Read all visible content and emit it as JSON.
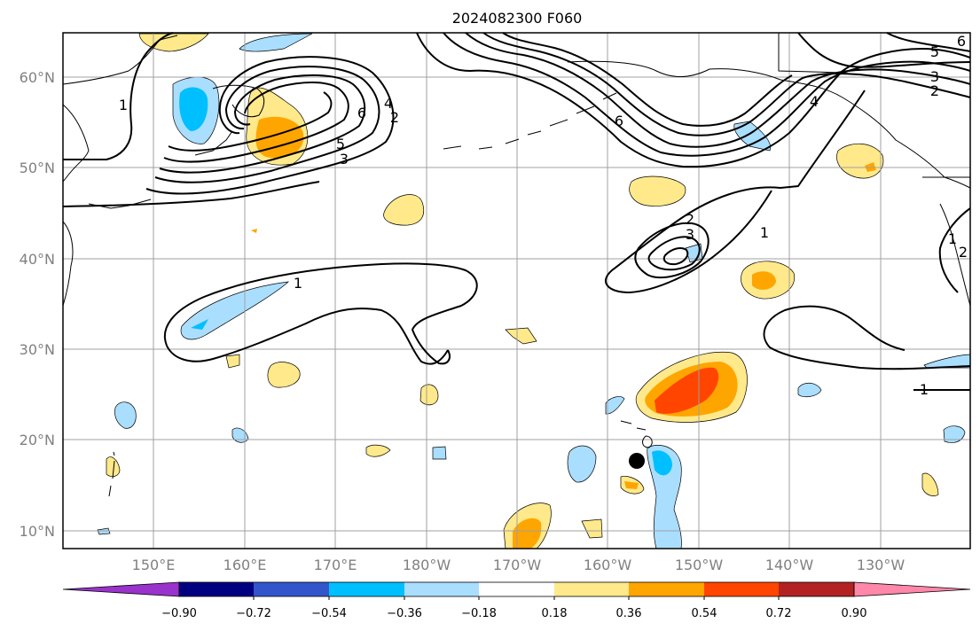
{
  "map": {
    "title": "2024082300 F060",
    "latitude_labels": [
      "60°N",
      "50°N",
      "40°N",
      "30°N",
      "20°N",
      "10°N"
    ],
    "longitude_labels": [
      "150°E",
      "160°E",
      "170°E",
      "180°W",
      "170°W",
      "160°W",
      "150°W",
      "140°W",
      "130°W"
    ],
    "contour_labels": [
      "1",
      "2",
      "3",
      "4",
      "5",
      "6"
    ],
    "marker": "black-dot"
  },
  "colorbar": {
    "tick_labels": [
      "−0.90",
      "−0.72",
      "−0.54",
      "−0.36",
      "−0.18",
      "0.18",
      "0.36",
      "0.54",
      "0.72",
      "0.90"
    ],
    "colors": [
      "#9933cc",
      "#000080",
      "#3355cc",
      "#00bfff",
      "#aadeff",
      "#ffffff",
      "#ffe98a",
      "#ffa500",
      "#ff4500",
      "#b22222",
      "#ff88aa"
    ]
  }
}
